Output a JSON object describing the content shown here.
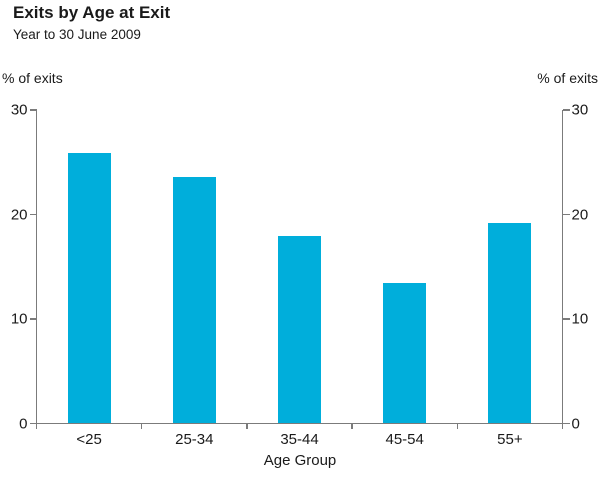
{
  "header": {
    "title": "Exits by Age at Exit",
    "subtitle": "Year to 30 June 2009"
  },
  "axis_labels": {
    "left": "% of exits",
    "right": "% of exits",
    "x": "Age Group"
  },
  "chart_data": {
    "type": "bar",
    "title": "Exits by Age at Exit",
    "subtitle": "Year to 30 June 2009",
    "categories": [
      "<25",
      "25-34",
      "35-44",
      "45-54",
      "55+"
    ],
    "values": [
      25.9,
      23.6,
      17.9,
      13.4,
      19.2
    ],
    "xlabel": "Age Group",
    "ylabel_left": "% of exits",
    "ylabel_right": "% of exits",
    "ylim": [
      0,
      30
    ],
    "y_ticks": [
      0,
      10,
      20,
      30
    ],
    "grid": false,
    "legend": "none",
    "dual_y_axis": true,
    "bar_color": "#00AEDB",
    "axis_color": "#7b7b7b",
    "text_color": "#1a1a1a"
  }
}
